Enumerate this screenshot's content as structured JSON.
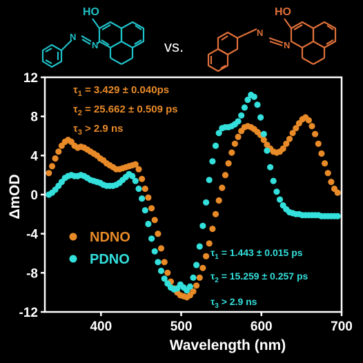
{
  "header": {
    "structure_1": {
      "label": "HO",
      "color": "#1fc2c9"
    },
    "vs_label": "vs.",
    "structure_2": {
      "label": "HO",
      "color": "#e0703a"
    },
    "nitrogen_label": "N"
  },
  "chart_data": {
    "type": "scatter",
    "xlabel": "Wavelength (nm)",
    "ylabel": "ΔmOD",
    "xlim": [
      330,
      700
    ],
    "ylim": [
      -12,
      12
    ],
    "xticks": [
      400,
      500,
      600,
      700
    ],
    "yticks": [
      -12,
      -8,
      -4,
      0,
      4,
      8,
      12
    ],
    "grid": false,
    "legend_position": "left-lower",
    "series": [
      {
        "name": "NDNO",
        "color": "#e88a28",
        "points": [
          [
            335,
            2.2
          ],
          [
            339,
            2.9
          ],
          [
            343,
            3.7
          ],
          [
            347,
            4.4
          ],
          [
            351,
            5.0
          ],
          [
            355,
            5.4
          ],
          [
            359,
            5.6
          ],
          [
            363,
            5.4
          ],
          [
            367,
            5.0
          ],
          [
            371,
            4.8
          ],
          [
            375,
            4.9
          ],
          [
            379,
            4.8
          ],
          [
            383,
            4.6
          ],
          [
            387,
            4.4
          ],
          [
            391,
            4.2
          ],
          [
            395,
            4.0
          ],
          [
            399,
            3.7
          ],
          [
            403,
            3.5
          ],
          [
            407,
            3.2
          ],
          [
            411,
            3.0
          ],
          [
            415,
            2.8
          ],
          [
            419,
            2.6
          ],
          [
            423,
            2.6
          ],
          [
            427,
            2.7
          ],
          [
            431,
            2.8
          ],
          [
            435,
            2.9
          ],
          [
            439,
            3.0
          ],
          [
            443,
            3.1
          ],
          [
            447,
            2.6
          ],
          [
            451,
            1.6
          ],
          [
            455,
            0.6
          ],
          [
            459,
            -0.3
          ],
          [
            463,
            -1.4
          ],
          [
            467,
            -2.6
          ],
          [
            471,
            -4.0
          ],
          [
            475,
            -5.5
          ],
          [
            479,
            -6.9
          ],
          [
            483,
            -8.0
          ],
          [
            487,
            -8.9
          ],
          [
            491,
            -9.6
          ],
          [
            495,
            -10.0
          ],
          [
            499,
            -10.3
          ],
          [
            503,
            -10.4
          ],
          [
            507,
            -10.5
          ],
          [
            511,
            -10.3
          ],
          [
            515,
            -9.9
          ],
          [
            519,
            -9.3
          ],
          [
            523,
            -8.5
          ],
          [
            527,
            -7.5
          ],
          [
            531,
            -6.3
          ],
          [
            535,
            -5.0
          ],
          [
            539,
            -3.5
          ],
          [
            543,
            -2.0
          ],
          [
            547,
            -0.6
          ],
          [
            551,
            0.7
          ],
          [
            555,
            2.0
          ],
          [
            559,
            3.2
          ],
          [
            563,
            4.3
          ],
          [
            567,
            5.2
          ],
          [
            571,
            5.9
          ],
          [
            575,
            6.5
          ],
          [
            579,
            6.9
          ],
          [
            583,
            7.0
          ],
          [
            587,
            6.9
          ],
          [
            591,
            6.7
          ],
          [
            595,
            6.4
          ],
          [
            599,
            6.1
          ],
          [
            603,
            5.6
          ],
          [
            607,
            5.1
          ],
          [
            611,
            4.7
          ],
          [
            615,
            4.4
          ],
          [
            619,
            4.3
          ],
          [
            623,
            4.4
          ],
          [
            627,
            4.7
          ],
          [
            631,
            5.2
          ],
          [
            635,
            5.7
          ],
          [
            639,
            6.3
          ],
          [
            643,
            6.8
          ],
          [
            647,
            7.3
          ],
          [
            651,
            7.7
          ],
          [
            655,
            7.9
          ],
          [
            659,
            7.6
          ],
          [
            663,
            7.0
          ],
          [
            667,
            6.2
          ],
          [
            671,
            5.2
          ],
          [
            675,
            4.2
          ],
          [
            679,
            3.2
          ],
          [
            683,
            2.2
          ],
          [
            687,
            1.3
          ],
          [
            691,
            0.6
          ],
          [
            695,
            0.2
          ]
        ]
      },
      {
        "name": "PDNO",
        "color": "#33e0dc",
        "points": [
          [
            335,
            0.0
          ],
          [
            339,
            0.2
          ],
          [
            343,
            0.5
          ],
          [
            347,
            0.9
          ],
          [
            351,
            1.3
          ],
          [
            355,
            1.7
          ],
          [
            359,
            1.9
          ],
          [
            363,
            2.0
          ],
          [
            367,
            1.9
          ],
          [
            371,
            1.9
          ],
          [
            375,
            2.0
          ],
          [
            379,
            1.9
          ],
          [
            383,
            1.7
          ],
          [
            387,
            1.5
          ],
          [
            391,
            1.4
          ],
          [
            395,
            1.3
          ],
          [
            399,
            1.2
          ],
          [
            403,
            1.0
          ],
          [
            407,
            0.9
          ],
          [
            411,
            0.9
          ],
          [
            415,
            0.9
          ],
          [
            419,
            1.0
          ],
          [
            423,
            1.2
          ],
          [
            427,
            1.5
          ],
          [
            431,
            1.8
          ],
          [
            435,
            2.1
          ],
          [
            439,
            1.9
          ],
          [
            443,
            1.4
          ],
          [
            447,
            0.6
          ],
          [
            451,
            -0.4
          ],
          [
            455,
            -1.6
          ],
          [
            459,
            -3.0
          ],
          [
            463,
            -4.5
          ],
          [
            467,
            -5.8
          ],
          [
            471,
            -6.9
          ],
          [
            475,
            -7.8
          ],
          [
            479,
            -8.6
          ],
          [
            483,
            -9.1
          ],
          [
            487,
            -9.5
          ],
          [
            491,
            -9.7
          ],
          [
            495,
            -9.6
          ],
          [
            499,
            -9.2
          ],
          [
            503,
            -9.5
          ],
          [
            507,
            -9.8
          ],
          [
            511,
            -9.4
          ],
          [
            515,
            -8.5
          ],
          [
            519,
            -7.2
          ],
          [
            523,
            -5.3
          ],
          [
            527,
            -3.2
          ],
          [
            531,
            -0.8
          ],
          [
            535,
            1.5
          ],
          [
            539,
            3.4
          ],
          [
            543,
            5.0
          ],
          [
            547,
            6.3
          ],
          [
            551,
            6.8
          ],
          [
            555,
            6.9
          ],
          [
            559,
            6.9
          ],
          [
            563,
            7.0
          ],
          [
            567,
            7.2
          ],
          [
            571,
            7.5
          ],
          [
            575,
            8.1
          ],
          [
            579,
            8.9
          ],
          [
            583,
            9.7
          ],
          [
            587,
            10.2
          ],
          [
            591,
            10.0
          ],
          [
            595,
            9.2
          ],
          [
            599,
            7.9
          ],
          [
            603,
            6.2
          ],
          [
            607,
            4.5
          ],
          [
            611,
            2.8
          ],
          [
            615,
            1.4
          ],
          [
            619,
            0.3
          ],
          [
            623,
            -0.5
          ],
          [
            627,
            -1.1
          ],
          [
            631,
            -1.5
          ],
          [
            635,
            -1.8
          ],
          [
            639,
            -1.9
          ],
          [
            643,
            -2.0
          ],
          [
            647,
            -2.0
          ],
          [
            651,
            -2.1
          ],
          [
            655,
            -2.1
          ],
          [
            659,
            -2.1
          ],
          [
            663,
            -2.1
          ],
          [
            667,
            -2.1
          ],
          [
            671,
            -2.1
          ],
          [
            675,
            -2.2
          ],
          [
            679,
            -2.2
          ],
          [
            683,
            -2.2
          ],
          [
            687,
            -2.2
          ],
          [
            691,
            -2.2
          ],
          [
            695,
            -2.2
          ]
        ]
      }
    ],
    "annotations": {
      "ndno_lifetimes": [
        {
          "sym": "τ",
          "sub": "1",
          "text": " = 3.429 ± 0.040ps"
        },
        {
          "sym": "τ",
          "sub": "2",
          "text": " = 25.662 ± 0.509 ps"
        },
        {
          "sym": "τ",
          "sub": "3",
          "text": " > 2.9 ns"
        }
      ],
      "pdno_lifetimes": [
        {
          "sym": "τ",
          "sub": "1",
          "text": " = 1.443 ± 0.015 ps"
        },
        {
          "sym": "τ",
          "sub": "2",
          "text": " = 15.259 ± 0.257 ps"
        },
        {
          "sym": "τ",
          "sub": "3",
          "text": " > 2.9 ns"
        }
      ]
    }
  }
}
